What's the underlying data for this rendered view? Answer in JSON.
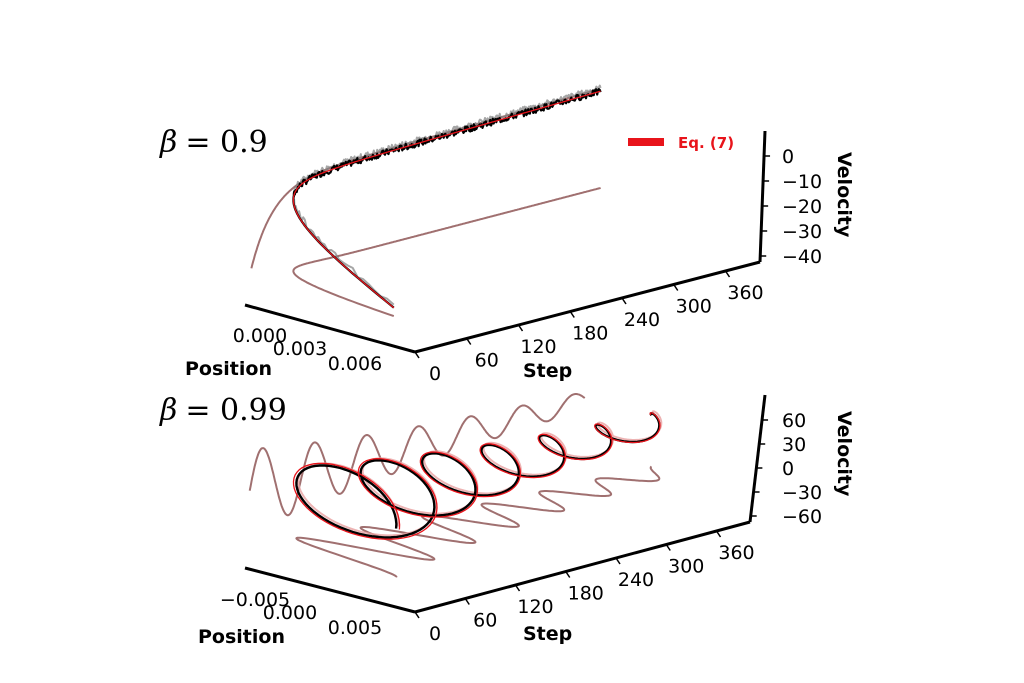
{
  "chart_data": [
    {
      "type": "line",
      "title": "β = 0.9",
      "title_symbol": "β",
      "title_rest": "= 0.9",
      "xlabel": "Step",
      "ylabel": "Position",
      "zlabel": "Velocity",
      "x_ticks": [
        "0",
        "60",
        "120",
        "180",
        "240",
        "300",
        "360"
      ],
      "y_ticks": [
        "0.000",
        "0.003",
        "0.006"
      ],
      "z_ticks": [
        "0",
        "−10",
        "−20",
        "−30",
        "−40"
      ],
      "xlim": [
        0,
        400
      ],
      "ylim": [
        -0.0005,
        0.0075
      ],
      "zlim": [
        -42,
        6
      ],
      "legend": {
        "label": "Eq. (7)",
        "color": "#e8141b",
        "placement": "top-right"
      },
      "colors": {
        "simulated": "#000000",
        "runs": "#808080",
        "equation": "#e8141b",
        "projection": "#a07070"
      },
      "series": [
        {
          "name": "Eq. (7)",
          "equation": "damped",
          "beta": 0.9
        }
      ]
    },
    {
      "type": "line",
      "title": "β = 0.99",
      "title_symbol": "β",
      "title_rest": "= 0.99",
      "xlabel": "Step",
      "ylabel": "Position",
      "zlabel": "Velocity",
      "x_ticks": [
        "0",
        "60",
        "120",
        "180",
        "240",
        "300",
        "360"
      ],
      "y_ticks": [
        "−0.005",
        "0.000",
        "0.005"
      ],
      "z_ticks": [
        "60",
        "30",
        "0",
        "−30",
        "−60"
      ],
      "xlim": [
        0,
        400
      ],
      "ylim": [
        -0.009,
        0.009
      ],
      "zlim": [
        -70,
        70
      ],
      "colors": {
        "simulated": "#000000",
        "runs": "#e8a0a0",
        "equation": "#e8141b",
        "projection": "#a07070"
      },
      "series": [
        {
          "name": "Eq. (7)",
          "equation": "oscillating",
          "beta": 0.99
        }
      ]
    }
  ]
}
